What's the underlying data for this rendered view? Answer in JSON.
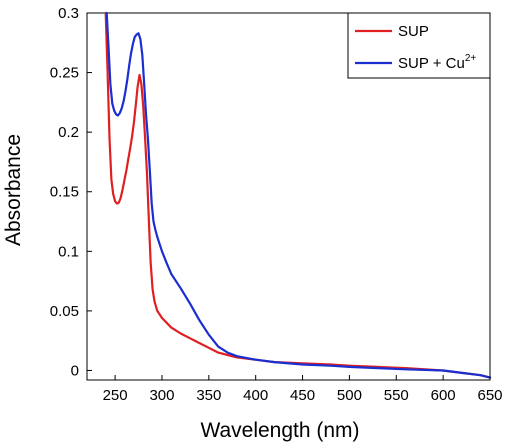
{
  "chart_data": {
    "type": "line",
    "title": "",
    "xlabel": "Wavelength (nm)",
    "ylabel": "Absorbance",
    "xlim": [
      220,
      650
    ],
    "ylim": [
      -0.008,
      0.3
    ],
    "xticks": [
      250,
      300,
      350,
      400,
      450,
      500,
      550,
      600,
      650
    ],
    "yticks": [
      0,
      0.05,
      0.1,
      0.15,
      0.2,
      0.25,
      0.3
    ],
    "xtick_labels": [
      "250",
      "300",
      "350",
      "400",
      "450",
      "500",
      "550",
      "600",
      "650"
    ],
    "ytick_labels": [
      "0",
      "0.05",
      "0.1",
      "0.15",
      "0.2",
      "0.25",
      "0.3"
    ],
    "grid": false,
    "legend_position": "top-right",
    "legend": {
      "entries": [
        {
          "label": "SUP",
          "superscript": "",
          "color": "#e02020"
        },
        {
          "label": "SUP + Cu",
          "superscript": "2+",
          "color": "#1b2fd0"
        }
      ]
    },
    "series": [
      {
        "name": "SUP",
        "color": "#e02020",
        "x": [
          240,
          242,
          244,
          246,
          248,
          250,
          252,
          254,
          256,
          258,
          260,
          262,
          264,
          266,
          268,
          270,
          272,
          274,
          276,
          278,
          280,
          282,
          284,
          286,
          288,
          290,
          292,
          295,
          300,
          305,
          310,
          320,
          330,
          340,
          350,
          360,
          370,
          380,
          400,
          420,
          450,
          480,
          500,
          530,
          560,
          600,
          620,
          640,
          650
        ],
        "y": [
          0.3,
          0.25,
          0.195,
          0.16,
          0.148,
          0.142,
          0.14,
          0.141,
          0.145,
          0.152,
          0.16,
          0.168,
          0.177,
          0.186,
          0.196,
          0.208,
          0.222,
          0.238,
          0.248,
          0.24,
          0.222,
          0.195,
          0.165,
          0.125,
          0.09,
          0.068,
          0.058,
          0.05,
          0.044,
          0.04,
          0.036,
          0.031,
          0.027,
          0.023,
          0.019,
          0.015,
          0.013,
          0.011,
          0.009,
          0.007,
          0.006,
          0.005,
          0.004,
          0.003,
          0.002,
          0.0,
          -0.002,
          -0.004,
          -0.006
        ]
      },
      {
        "name": "SUP + Cu2+",
        "color": "#1b2fd0",
        "x": [
          241,
          243,
          245,
          247,
          249,
          251,
          253,
          255,
          257,
          259,
          261,
          263,
          265,
          267,
          269,
          271,
          273,
          275,
          277,
          279,
          281,
          283,
          285,
          287,
          289,
          291,
          293,
          295,
          300,
          305,
          310,
          320,
          330,
          340,
          350,
          360,
          370,
          380,
          400,
          420,
          450,
          480,
          500,
          530,
          560,
          600,
          620,
          640,
          650
        ],
        "y": [
          0.3,
          0.27,
          0.24,
          0.224,
          0.218,
          0.215,
          0.214,
          0.216,
          0.22,
          0.226,
          0.234,
          0.244,
          0.256,
          0.266,
          0.274,
          0.28,
          0.282,
          0.283,
          0.278,
          0.265,
          0.24,
          0.215,
          0.195,
          0.168,
          0.14,
          0.125,
          0.118,
          0.112,
          0.1,
          0.09,
          0.081,
          0.069,
          0.056,
          0.042,
          0.03,
          0.02,
          0.015,
          0.012,
          0.009,
          0.007,
          0.005,
          0.004,
          0.003,
          0.002,
          0.001,
          0.0,
          -0.002,
          -0.004,
          -0.006
        ]
      }
    ]
  }
}
